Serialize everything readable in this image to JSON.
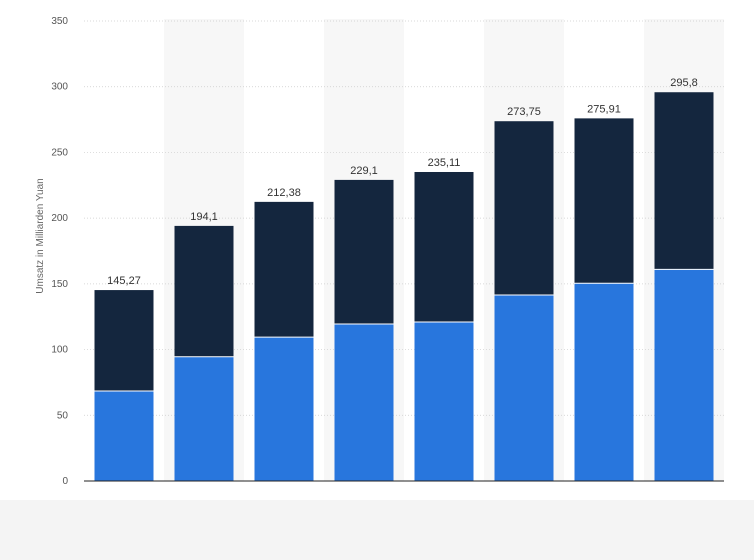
{
  "chart_data": {
    "type": "bar",
    "stacked": true,
    "title": "",
    "xlabel": "",
    "ylabel": "Umsatz in Milliarden Yuan",
    "ylim": [
      0,
      350
    ],
    "yticks": [
      0,
      50,
      100,
      150,
      200,
      250,
      300,
      350
    ],
    "grid": true,
    "legend": "none",
    "categories": [
      "",
      "",
      "",
      "",
      "",
      "",
      "",
      ""
    ],
    "series": [
      {
        "color": "#2876dd",
        "values": [
          68.5,
          94.5,
          109.5,
          119.5,
          121.0,
          141.5,
          150.5,
          161.0
        ]
      },
      {
        "color": "#14263e",
        "values": [
          76.77,
          99.6,
          102.88,
          109.6,
          114.11,
          132.25,
          125.41,
          134.8
        ]
      }
    ],
    "totals": [
      145.27,
      194.1,
      212.38,
      229.1,
      235.11,
      273.75,
      275.91,
      295.8
    ],
    "total_labels": [
      "145,27",
      "194,1",
      "212,38",
      "229,1",
      "235,11",
      "273,75",
      "275,91",
      "295,8"
    ]
  }
}
